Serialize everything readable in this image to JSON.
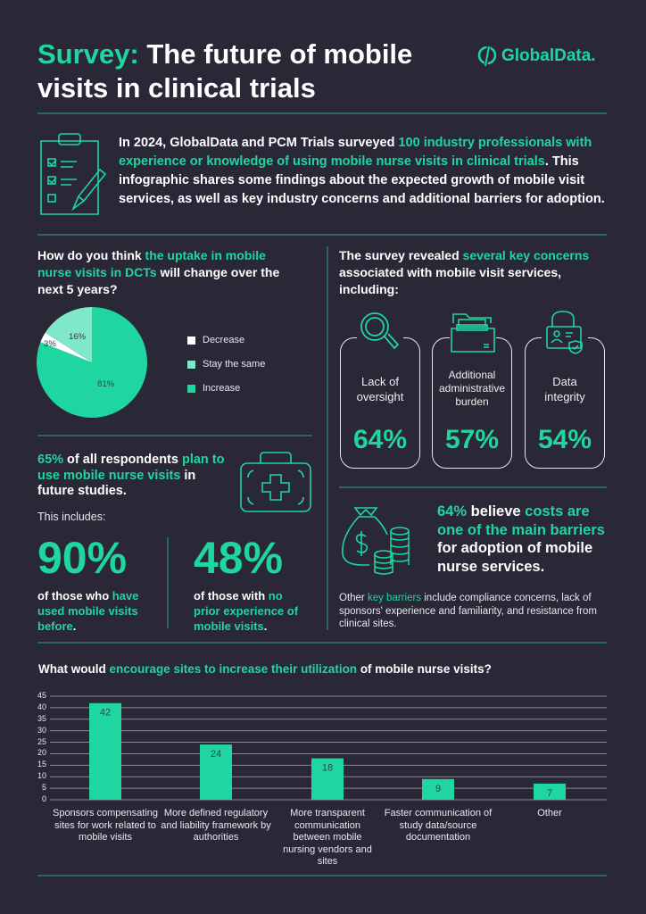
{
  "header": {
    "title_highlight": "Survey:",
    "title_rest": " The future of mobile visits in clinical trials",
    "logo_text": "GlobalData."
  },
  "intro": {
    "part1": "In 2024, GlobalData and PCM Trials surveyed ",
    "part2": "100 industry professionals with experience or knowledge of using mobile nurse visits in clinical trials",
    "part3": ". This infographic shares some findings about the expected growth of mobile visit services, as well as key industry concerns and additional barriers for adoption."
  },
  "uptake": {
    "q1": "How do you think ",
    "q2": "the uptake in mobile nurse visits in DCTs",
    "q3": " will change over the next 5 years?"
  },
  "plans": {
    "p1": "65%",
    "p2": " of all respondents ",
    "p3": "plan to use mobile nurse visits",
    "p4": " in future studies.",
    "includes": "This includes:",
    "stat1": "90%",
    "stat1_a": "of those who ",
    "stat1_b": "have used mobile visits before",
    "stat1_c": ".",
    "stat2": "48%",
    "stat2_a": "of those with ",
    "stat2_b": "no prior experience of mobile visits",
    "stat2_c": "."
  },
  "concerns": {
    "q1": "The survey revealed ",
    "q2": "several key concerns",
    "q3": " associated with mobile visit services, including:",
    "cards": [
      {
        "label": "Lack of oversight",
        "value": "64%",
        "icon": "magnifier-icon"
      },
      {
        "label": "Additional administrative burden",
        "value": "57%",
        "icon": "folder-icon"
      },
      {
        "label": "Data integrity",
        "value": "54%",
        "icon": "lock-id-icon"
      }
    ]
  },
  "costs": {
    "c1": "64%",
    "c2": " believe ",
    "c3": "costs are one of the main barriers",
    "c4": " for adoption of mobile nurse services.",
    "o1": "Other ",
    "o2": "key barriers",
    "o3": " include compliance concerns, lack of sponsors' experience and familiarity, and resistance from clinical sites."
  },
  "bar_question": {
    "q1": "What would ",
    "q2": "encourage sites to increase their utilization",
    "q3": " of mobile nurse visits?"
  },
  "colors": {
    "background": "#2a2737",
    "accent": "#1fd6a0",
    "accent_light": "#7ee8c8",
    "white": "#ffffff"
  },
  "chart_data": [
    {
      "type": "pie",
      "slices": [
        {
          "name": "Increase",
          "value": 81,
          "label": "81%",
          "color": "#1fd6a0"
        },
        {
          "name": "Decrease",
          "value": 3,
          "label": "3%",
          "color": "#ffffff"
        },
        {
          "name": "Stay the same",
          "value": 16,
          "label": "16%",
          "color": "#7ee8c8"
        }
      ],
      "legend": [
        "Decrease",
        "Stay the same",
        "Increase"
      ],
      "legend_position": "right"
    },
    {
      "type": "bar",
      "categories": [
        "Sponsors compensating sites for work related to mobile visits",
        "More defined regulatory and liability framework by authorities",
        "More transparent communication between mobile nursing vendors and sites",
        "Faster communication of study data/source documentation",
        "Other"
      ],
      "values": [
        42,
        24,
        18,
        9,
        7
      ],
      "ylim": [
        0,
        45
      ],
      "yticks": [
        "0",
        "5",
        "10",
        "15",
        "20",
        "25",
        "30",
        "35",
        "40",
        "45"
      ],
      "grid": true,
      "bar_color": "#1fd6a0"
    }
  ]
}
